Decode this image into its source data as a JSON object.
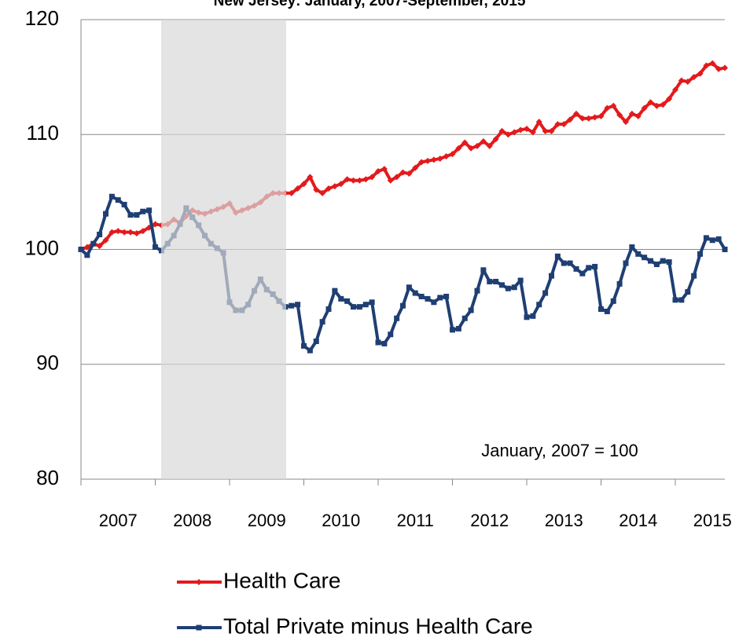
{
  "chart_data": {
    "type": "line",
    "title": "New Jersey: January, 2007-September, 2015",
    "annotation": "January, 2007 = 100",
    "categories": [
      null,
      null,
      null,
      null,
      null,
      null,
      "2007",
      null,
      null,
      null,
      null,
      null,
      null,
      null,
      null,
      null,
      null,
      null,
      "2008",
      null,
      null,
      null,
      null,
      null,
      null,
      null,
      null,
      null,
      null,
      null,
      "2009",
      null,
      null,
      null,
      null,
      null,
      null,
      null,
      null,
      null,
      null,
      null,
      "2010",
      null,
      null,
      null,
      null,
      null,
      null,
      null,
      null,
      null,
      null,
      null,
      "2011",
      null,
      null,
      null,
      null,
      null,
      null,
      null,
      null,
      null,
      null,
      null,
      "2012",
      null,
      null,
      null,
      null,
      null,
      null,
      null,
      null,
      null,
      null,
      null,
      "2013",
      null,
      null,
      null,
      null,
      null,
      null,
      null,
      null,
      null,
      null,
      null,
      "2014",
      null,
      null,
      null,
      null,
      null,
      null,
      null,
      null,
      null,
      null,
      null,
      "2015",
      null,
      null
    ],
    "series": [
      {
        "name": "Health Care",
        "color": "#e31a1c",
        "marker": "diamond",
        "values": [
          100,
          100.2,
          100.5,
          100.3,
          100.8,
          101.5,
          101.6,
          101.5,
          101.5,
          101.4,
          101.6,
          101.9,
          102.2,
          102.1,
          102.2,
          102.6,
          102.3,
          102.9,
          103.4,
          103.2,
          103.1,
          103.3,
          103.5,
          103.7,
          104.0,
          103.2,
          103.4,
          103.6,
          103.8,
          104.1,
          104.6,
          104.9,
          104.9,
          104.9,
          104.9,
          105.3,
          105.7,
          106.3,
          105.2,
          104.9,
          105.3,
          105.5,
          105.7,
          106.1,
          106.0,
          106.0,
          106.1,
          106.3,
          106.8,
          107.0,
          106.0,
          106.3,
          106.7,
          106.6,
          107.1,
          107.6,
          107.7,
          107.8,
          107.9,
          108.1,
          108.3,
          108.8,
          109.3,
          108.8,
          109.0,
          109.4,
          109.0,
          109.6,
          110.3,
          110.0,
          110.2,
          110.4,
          110.5,
          110.2,
          111.1,
          110.3,
          110.3,
          110.9,
          110.9,
          111.3,
          111.8,
          111.4,
          111.4,
          111.5,
          111.6,
          112.3,
          112.5,
          111.7,
          111.1,
          111.8,
          111.6,
          112.3,
          112.8,
          112.5,
          112.6,
          113.1,
          113.9,
          114.7,
          114.6,
          115.0,
          115.3,
          116.0,
          116.2,
          115.7,
          115.8
        ]
      },
      {
        "name": "Total Private minus Health Care",
        "color": "#1f3f73",
        "marker": "square",
        "values": [
          100,
          99.5,
          100.5,
          101.3,
          103.1,
          104.6,
          104.3,
          103.9,
          103.0,
          103.0,
          103.3,
          103.4,
          100.2,
          99.9,
          100.5,
          101.2,
          102.2,
          103.6,
          102.8,
          102.1,
          101.2,
          100.5,
          100.1,
          99.7,
          95.4,
          94.7,
          94.7,
          95.2,
          96.4,
          97.4,
          96.5,
          96.1,
          95.5,
          95.0,
          95.1,
          95.2,
          91.6,
          91.2,
          92.0,
          93.7,
          94.8,
          96.4,
          95.7,
          95.5,
          95.0,
          95.0,
          95.2,
          95.4,
          91.9,
          91.8,
          92.6,
          94.0,
          95.1,
          96.7,
          96.2,
          95.9,
          95.7,
          95.4,
          95.8,
          95.9,
          93.0,
          93.1,
          94.0,
          94.7,
          96.4,
          98.2,
          97.2,
          97.2,
          96.9,
          96.6,
          96.7,
          97.3,
          94.1,
          94.2,
          95.2,
          96.2,
          97.7,
          99.4,
          98.8,
          98.8,
          98.3,
          97.9,
          98.4,
          98.5,
          94.8,
          94.6,
          95.5,
          97.0,
          98.8,
          100.2,
          99.6,
          99.3,
          99.0,
          98.7,
          99.0,
          98.9,
          95.6,
          95.6,
          96.3,
          97.7,
          99.6,
          101.0,
          100.8,
          100.9,
          100.0
        ]
      }
    ],
    "ylim": [
      80,
      120
    ],
    "yticks": [
      80,
      90,
      100,
      110,
      120
    ],
    "grid": true,
    "legend": "bottom"
  }
}
